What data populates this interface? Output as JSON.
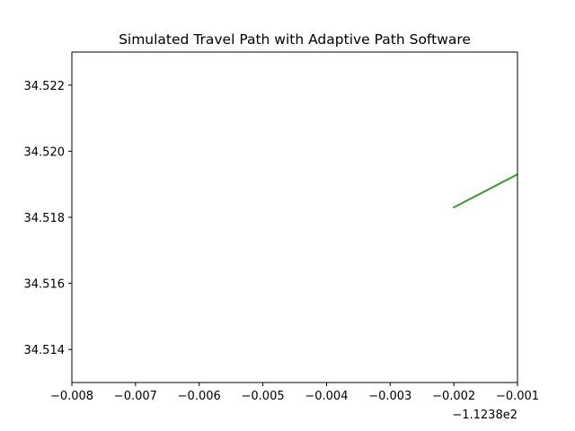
{
  "chart_data": {
    "type": "line",
    "title": "Simulated Travel Path with Adaptive Path Software",
    "xlabel": "",
    "ylabel": "",
    "x_offset_label": "−1.1238e2",
    "xlim": [
      -0.008,
      -0.001
    ],
    "ylim": [
      34.513,
      34.523
    ],
    "x_ticks": [
      -0.008,
      -0.007,
      -0.006,
      -0.005,
      -0.004,
      -0.003,
      -0.002,
      -0.001
    ],
    "x_tick_labels": [
      "−0.008",
      "−0.007",
      "−0.006",
      "−0.005",
      "−0.004",
      "−0.003",
      "−0.002",
      "−0.001"
    ],
    "y_ticks": [
      34.514,
      34.516,
      34.518,
      34.52,
      34.522
    ],
    "y_tick_labels": [
      "34.514",
      "34.516",
      "34.518",
      "34.520",
      "34.522"
    ],
    "grid": false,
    "series": [
      {
        "color": "#3a9a2a",
        "x": [
          -0.002,
          -0.001
        ],
        "y": [
          34.5183,
          34.5193
        ]
      }
    ]
  }
}
